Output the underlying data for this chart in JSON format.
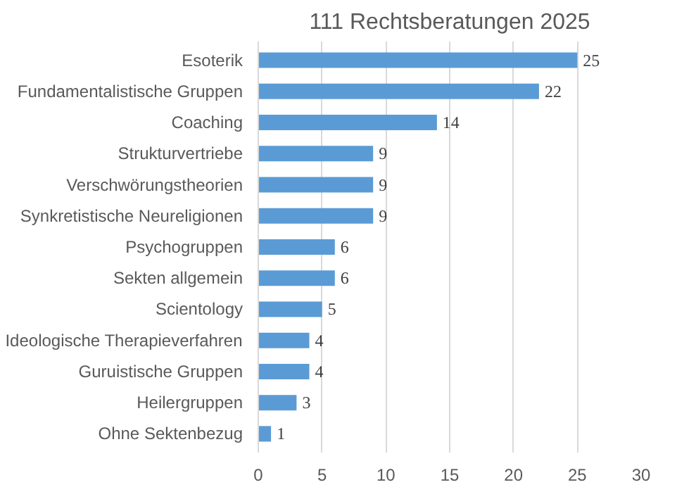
{
  "chart_data": {
    "type": "bar",
    "orientation": "horizontal",
    "title": "111 Rechtsberatungen 2025",
    "categories": [
      "Esoterik",
      "Fundamentalistische Gruppen",
      "Coaching",
      "Strukturvertriebe",
      "Verschwörungstheorien",
      "Synkretistische Neureligionen",
      "Psychogruppen",
      "Sekten allgemein",
      "Scientology",
      "Ideologische Therapieverfahren",
      "Guruistische Gruppen",
      "Heilergruppen",
      "Ohne Sektenbezug"
    ],
    "values": [
      25,
      22,
      14,
      9,
      9,
      9,
      6,
      6,
      5,
      4,
      4,
      3,
      1
    ],
    "color": "#5b9bd5",
    "xlim": [
      0,
      30
    ],
    "xticks": [
      0,
      5,
      10,
      15,
      20,
      25,
      30
    ],
    "grid": "x",
    "data_labels": true
  }
}
